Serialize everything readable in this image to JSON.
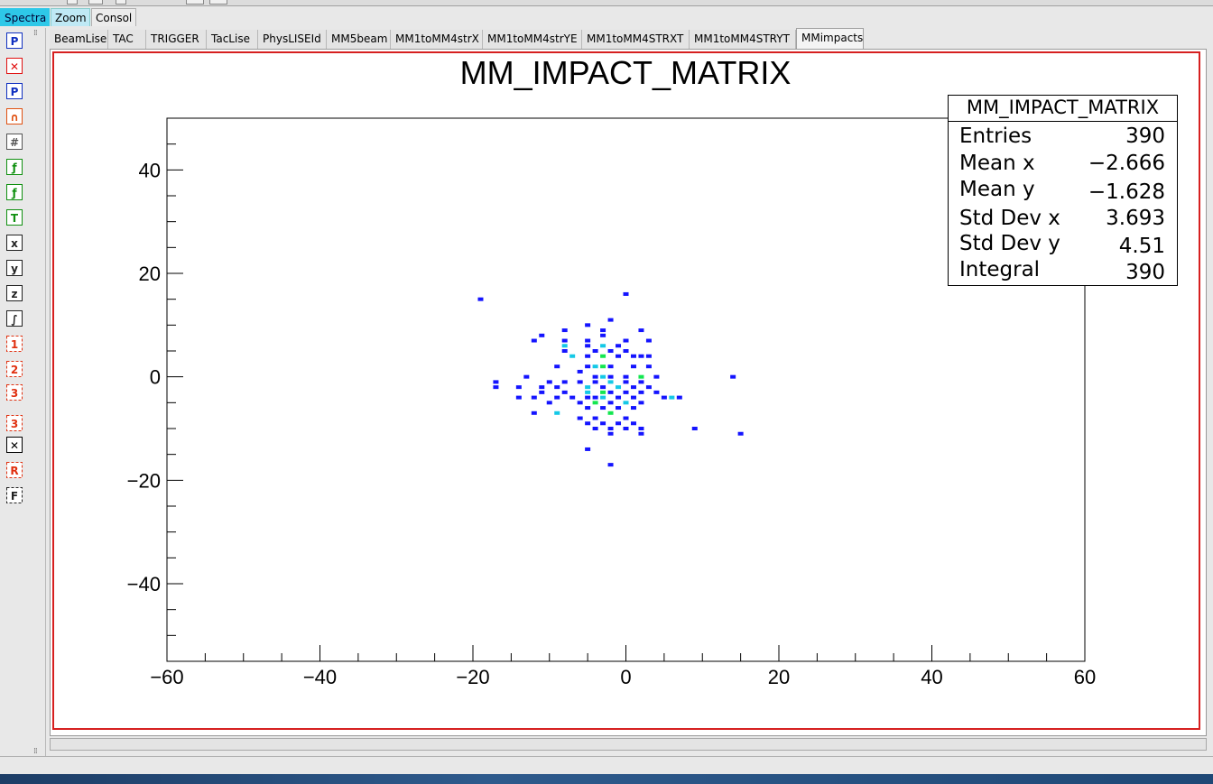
{
  "window": {
    "main_tabs": [
      {
        "label": "Spectra",
        "active": true
      },
      {
        "label": "Zoom"
      },
      {
        "label": "Consol"
      }
    ]
  },
  "toolbar": {
    "icons": [
      "new-canvas-icon",
      "delete-icon",
      "canvas-properties-icon",
      "fit-gauss-icon",
      "grid-icon",
      "fit-icon",
      "refit-icon",
      "reset-icon",
      "log-x-icon",
      "log-y-icon",
      "log-z-icon",
      "integral-icon",
      "zoom-1-icon",
      "zoom-2-icon",
      "zoom-3-icon",
      "zoom-3-alt-icon",
      "unzoom-icon",
      "rz-icon",
      "fft-icon"
    ]
  },
  "canvas_tabs": [
    {
      "label": "BeamLise"
    },
    {
      "label": "TAC"
    },
    {
      "label": "TRIGGER"
    },
    {
      "label": "TacLise"
    },
    {
      "label": "PhysLISEId"
    },
    {
      "label": "MM5beam"
    },
    {
      "label": "MM1toMM4strX"
    },
    {
      "label": "MM1toMM4strYE"
    },
    {
      "label": "MM1toMM4STRXT"
    },
    {
      "label": "MM1toMM4STRYT"
    },
    {
      "label": "MMimpacts",
      "active": true
    }
  ],
  "stats": {
    "title": "MM_IMPACT_MATRIX",
    "rows": [
      {
        "label": "Entries",
        "value": "390"
      },
      {
        "label": "Mean x",
        "value": "−2.666"
      },
      {
        "label": "Mean y",
        "value": "−1.628"
      },
      {
        "label": "Std Dev x",
        "value": "3.693"
      },
      {
        "label": "Std Dev y",
        "value": "4.51"
      },
      {
        "label": "Integral",
        "value": "390"
      }
    ]
  },
  "chart_data": {
    "type": "heatmap",
    "title": "MM_IMPACT_MATRIX",
    "xlabel": "",
    "ylabel": "",
    "xlim": [
      -60,
      60
    ],
    "ylim": [
      -55,
      50
    ],
    "x_ticks": [
      "−60",
      "−40",
      "−20",
      "0",
      "20",
      "40",
      "60"
    ],
    "y_ticks": [
      "40",
      "20",
      "0",
      "−20",
      "−40"
    ],
    "x_tick_values": [
      -60,
      -40,
      -20,
      0,
      20,
      40,
      60
    ],
    "y_tick_values": [
      40,
      20,
      0,
      -20,
      -40
    ],
    "colors": {
      "low": "#1414ff",
      "mid": "#14c8e6",
      "high": "#14e650"
    },
    "points": [
      [
        -19,
        15,
        1
      ],
      [
        0,
        16,
        1
      ],
      [
        -2,
        11,
        1
      ],
      [
        -11,
        8,
        1
      ],
      [
        -8,
        9,
        1
      ],
      [
        -5,
        10,
        1
      ],
      [
        -3,
        9,
        1
      ],
      [
        2,
        9,
        1
      ],
      [
        -12,
        7,
        1
      ],
      [
        -8,
        7,
        1
      ],
      [
        -5,
        7,
        1
      ],
      [
        -3,
        8,
        1
      ],
      [
        0,
        7,
        1
      ],
      [
        3,
        7,
        1
      ],
      [
        -8,
        6,
        2
      ],
      [
        -5,
        6,
        1
      ],
      [
        -3,
        6,
        2
      ],
      [
        -1,
        6,
        1
      ],
      [
        -8,
        5,
        1
      ],
      [
        -4,
        5,
        1
      ],
      [
        -2,
        5,
        1
      ],
      [
        0,
        5,
        1
      ],
      [
        2,
        4,
        1
      ],
      [
        3,
        4,
        1
      ],
      [
        -7,
        4,
        2
      ],
      [
        -5,
        4,
        1
      ],
      [
        -3,
        4,
        3
      ],
      [
        -1,
        4,
        1
      ],
      [
        1,
        4,
        1
      ],
      [
        -9,
        2,
        1
      ],
      [
        -5,
        2,
        1
      ],
      [
        -4,
        2,
        2
      ],
      [
        -3,
        2,
        3
      ],
      [
        -2,
        2,
        1
      ],
      [
        1,
        2,
        1
      ],
      [
        3,
        2,
        1
      ],
      [
        -13,
        0,
        1
      ],
      [
        -6,
        1,
        1
      ],
      [
        -4,
        0,
        1
      ],
      [
        -3,
        0,
        2
      ],
      [
        -2,
        0,
        1
      ],
      [
        0,
        0,
        1
      ],
      [
        2,
        0,
        3
      ],
      [
        4,
        0,
        1
      ],
      [
        14,
        0,
        1
      ],
      [
        -17,
        -1,
        1
      ],
      [
        -10,
        -1,
        1
      ],
      [
        -8,
        -1,
        1
      ],
      [
        -6,
        -1,
        1
      ],
      [
        -4,
        -1,
        1
      ],
      [
        -2,
        -1,
        2
      ],
      [
        0,
        -1,
        1
      ],
      [
        2,
        -1,
        1
      ],
      [
        -17,
        -2,
        1
      ],
      [
        -14,
        -2,
        1
      ],
      [
        -11,
        -2,
        1
      ],
      [
        -9,
        -2,
        1
      ],
      [
        -5,
        -2,
        2
      ],
      [
        -3,
        -2,
        1
      ],
      [
        -1,
        -2,
        2
      ],
      [
        1,
        -2,
        1
      ],
      [
        3,
        -2,
        1
      ],
      [
        -11,
        -3,
        1
      ],
      [
        -8,
        -3,
        1
      ],
      [
        -5,
        -3,
        2
      ],
      [
        -3,
        -3,
        3
      ],
      [
        -2,
        -3,
        1
      ],
      [
        0,
        -3,
        1
      ],
      [
        2,
        -3,
        1
      ],
      [
        4,
        -3,
        1
      ],
      [
        -14,
        -4,
        1
      ],
      [
        -12,
        -4,
        1
      ],
      [
        -9,
        -4,
        1
      ],
      [
        -7,
        -4,
        1
      ],
      [
        -5,
        -4,
        1
      ],
      [
        -4,
        -4,
        1
      ],
      [
        -3,
        -4,
        2
      ],
      [
        -1,
        -4,
        1
      ],
      [
        1,
        -4,
        1
      ],
      [
        5,
        -4,
        1
      ],
      [
        6,
        -4,
        2
      ],
      [
        7,
        -4,
        1
      ],
      [
        -10,
        -5,
        1
      ],
      [
        -6,
        -5,
        1
      ],
      [
        -4,
        -5,
        3
      ],
      [
        -2,
        -5,
        1
      ],
      [
        0,
        -5,
        2
      ],
      [
        2,
        -5,
        1
      ],
      [
        -12,
        -7,
        1
      ],
      [
        -9,
        -7,
        2
      ],
      [
        -5,
        -6,
        1
      ],
      [
        -3,
        -6,
        1
      ],
      [
        -1,
        -6,
        1
      ],
      [
        1,
        -6,
        1
      ],
      [
        -6,
        -8,
        1
      ],
      [
        -4,
        -8,
        1
      ],
      [
        -2,
        -7,
        3
      ],
      [
        0,
        -8,
        1
      ],
      [
        -5,
        -9,
        1
      ],
      [
        -3,
        -9,
        1
      ],
      [
        -1,
        -9,
        1
      ],
      [
        1,
        -9,
        1
      ],
      [
        -4,
        -10,
        1
      ],
      [
        -2,
        -10,
        1
      ],
      [
        0,
        -10,
        1
      ],
      [
        2,
        -10,
        1
      ],
      [
        9,
        -10,
        1
      ],
      [
        -2,
        -11,
        1
      ],
      [
        2,
        -11,
        1
      ],
      [
        15,
        -11,
        1
      ],
      [
        -5,
        -14,
        1
      ],
      [
        -2,
        -17,
        1
      ]
    ]
  }
}
